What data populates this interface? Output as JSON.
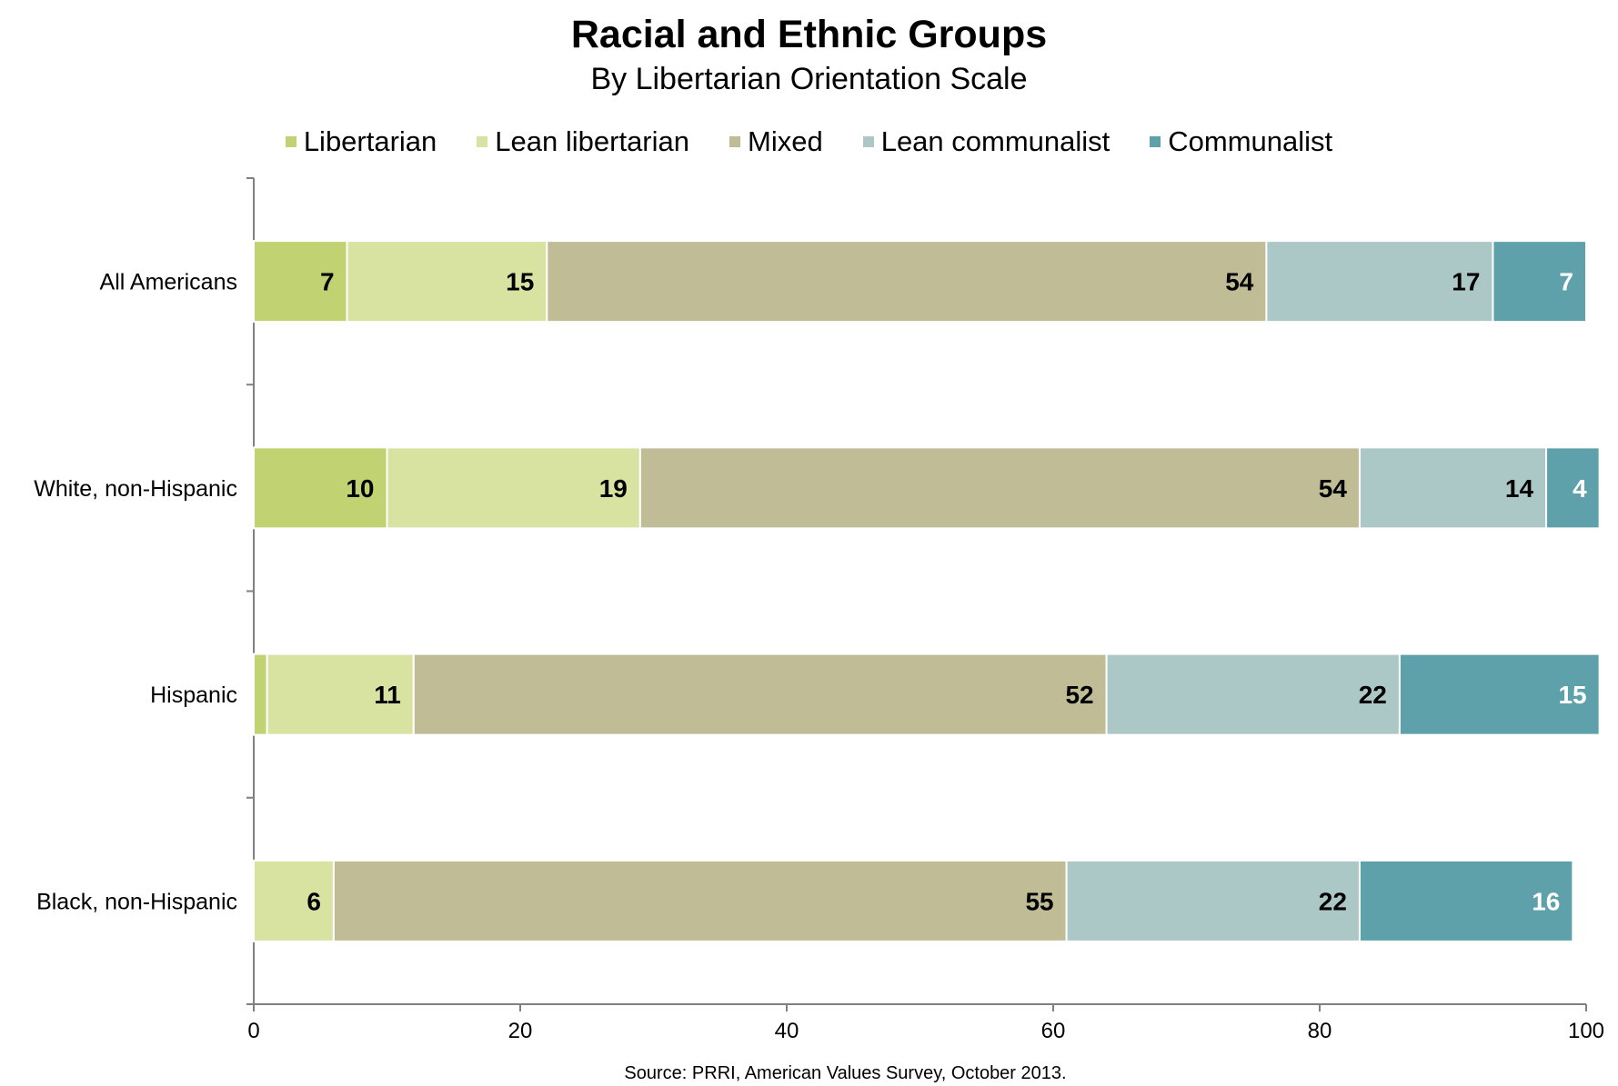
{
  "chart_data": {
    "type": "bar",
    "orientation": "horizontal",
    "stacked": true,
    "title": "Racial and Ethnic Groups",
    "subtitle": "By Libertarian Orientation Scale",
    "source": "Source: PRRI, American Values Survey, October 2013.",
    "categories": [
      "All Americans",
      "White, non-Hispanic",
      "Hispanic",
      "Black, non-Hispanic"
    ],
    "series": [
      {
        "name": "Libertarian",
        "color": "#c0d271",
        "values": [
          7,
          10,
          1,
          0
        ],
        "labels": [
          "7",
          "10",
          "",
          ""
        ]
      },
      {
        "name": "Lean libertarian",
        "color": "#d8e3a2",
        "values": [
          15,
          19,
          11,
          6
        ],
        "labels": [
          "15",
          "19",
          "11",
          "6"
        ]
      },
      {
        "name": "Mixed",
        "color": "#c0bc96",
        "values": [
          54,
          54,
          52,
          55
        ],
        "labels": [
          "54",
          "54",
          "52",
          "55"
        ]
      },
      {
        "name": "Lean communalist",
        "color": "#abc8c7",
        "values": [
          17,
          14,
          22,
          22
        ],
        "labels": [
          "17",
          "14",
          "22",
          "22"
        ]
      },
      {
        "name": "Communalist",
        "color": "#5fa1aa",
        "values": [
          7,
          4,
          15,
          16
        ],
        "labels": [
          "7",
          "4",
          "15",
          "16"
        ]
      }
    ],
    "xlim": [
      0,
      100
    ],
    "xticks": [
      "0",
      "20",
      "40",
      "60",
      "80",
      "100"
    ],
    "grid": false,
    "legend_position": "top"
  }
}
